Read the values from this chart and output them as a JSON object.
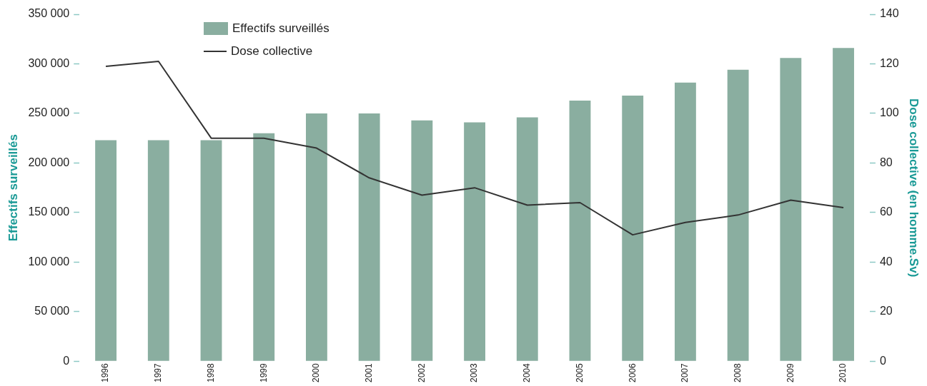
{
  "chart_data": {
    "type": "bar",
    "categories": [
      "1996",
      "1997",
      "1998",
      "1999",
      "2000",
      "2001",
      "2002",
      "2003",
      "2004",
      "2005",
      "2006",
      "2007",
      "2008",
      "2009",
      "2010"
    ],
    "series": [
      {
        "name": "Effectifs surveillés",
        "color": "#8aaea0",
        "values": [
          223000,
          223000,
          223000,
          230000,
          250000,
          250000,
          243000,
          241000,
          246000,
          263000,
          268000,
          281000,
          294000,
          306000,
          316000
        ]
      },
      {
        "name": "Dose collective",
        "type": "line",
        "axis": "y2",
        "color": "#333333",
        "values": [
          119,
          121,
          90,
          90,
          86,
          74,
          67,
          70,
          63,
          64,
          51,
          56,
          59,
          65,
          62
        ]
      }
    ],
    "ylabel": "Effectifs surveillés",
    "y2label": "Dose collective (en homme.Sv)",
    "ylim": [
      0,
      350000
    ],
    "yticks": [
      {
        "value": 0,
        "label": "0"
      },
      {
        "value": 50000,
        "label": "50 000"
      },
      {
        "value": 100000,
        "label": "100 000"
      },
      {
        "value": 150000,
        "label": "150 000"
      },
      {
        "value": 200000,
        "label": "200 000"
      },
      {
        "value": 250000,
        "label": "250 000"
      },
      {
        "value": 300000,
        "label": "300 000"
      },
      {
        "value": 350000,
        "label": "350 000"
      }
    ],
    "y2lim": [
      0,
      140
    ],
    "y2ticks": [
      0,
      20,
      40,
      60,
      80,
      100,
      120,
      140
    ],
    "grid": false,
    "legend": "top",
    "marker": "none",
    "line_style": "solid"
  }
}
